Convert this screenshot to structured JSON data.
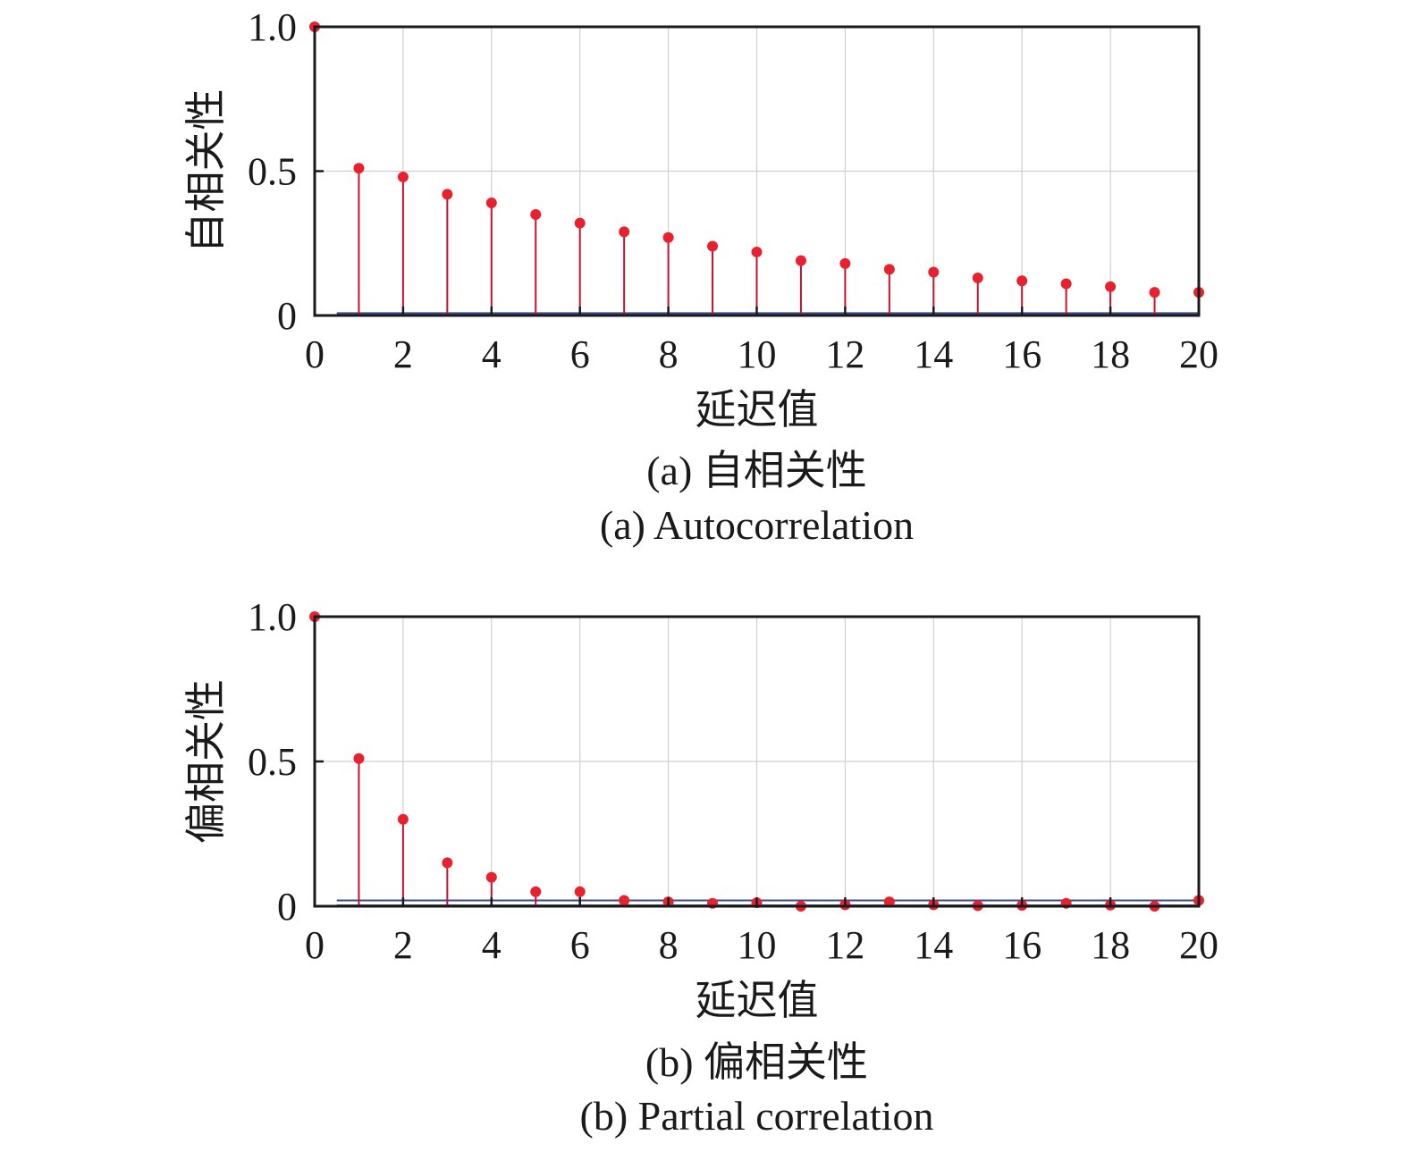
{
  "chart_data": [
    {
      "type": "stem",
      "x": [
        0,
        1,
        2,
        3,
        4,
        5,
        6,
        7,
        8,
        9,
        10,
        11,
        12,
        13,
        14,
        15,
        16,
        17,
        18,
        19,
        20
      ],
      "values": [
        1.0,
        0.51,
        0.48,
        0.42,
        0.39,
        0.35,
        0.32,
        0.29,
        0.27,
        0.24,
        0.22,
        0.19,
        0.18,
        0.16,
        0.15,
        0.13,
        0.12,
        0.11,
        0.1,
        0.08,
        0.08
      ],
      "confidence_bound": 0.008,
      "xlabel": "延迟值",
      "ylabel": "自相关性",
      "caption_cn": "(a) 自相关性",
      "caption_en": "(a) Autocorrelation",
      "xlim": [
        0,
        20
      ],
      "ylim": [
        0,
        1.0
      ],
      "xticks": [
        "0",
        "2",
        "4",
        "6",
        "8",
        "10",
        "12",
        "14",
        "16",
        "18",
        "20"
      ],
      "yticks": [
        "0",
        "0.5",
        "1.0"
      ],
      "grid": true,
      "colors": {
        "stem": "#c8102e",
        "marker": "#e8212f",
        "bound": "#3a4a8a",
        "grid": "#cfcfcf",
        "frame": "#1a1a1a"
      }
    },
    {
      "type": "stem",
      "x": [
        0,
        1,
        2,
        3,
        4,
        5,
        6,
        7,
        8,
        9,
        10,
        11,
        12,
        13,
        14,
        15,
        16,
        17,
        18,
        19,
        20
      ],
      "values": [
        1.0,
        0.51,
        0.3,
        0.15,
        0.1,
        0.05,
        0.05,
        0.02,
        0.015,
        0.01,
        0.012,
        0.0,
        0.005,
        0.015,
        0.005,
        0.002,
        0.003,
        0.01,
        0.004,
        0.0,
        0.02
      ],
      "confidence_bound": 0.02,
      "xlabel": "延迟值",
      "ylabel": "偏相关性",
      "caption_cn": "(b) 偏相关性",
      "caption_en": "(b) Partial correlation",
      "xlim": [
        0,
        20
      ],
      "ylim": [
        0,
        1.0
      ],
      "xticks": [
        "0",
        "2",
        "4",
        "6",
        "8",
        "10",
        "12",
        "14",
        "16",
        "18",
        "20"
      ],
      "yticks": [
        "0",
        "0.5",
        "1.0"
      ],
      "grid": true,
      "colors": {
        "stem": "#c8102e",
        "marker": "#e8212f",
        "bound": "#3a4a8a",
        "grid": "#cfcfcf",
        "frame": "#1a1a1a"
      }
    }
  ]
}
